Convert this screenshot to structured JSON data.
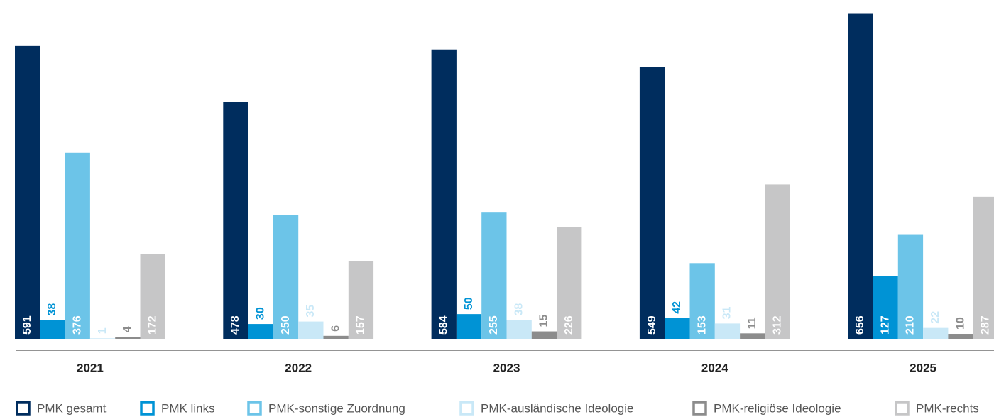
{
  "chart_data": {
    "type": "bar",
    "categories": [
      "2021",
      "2022",
      "2023",
      "2024",
      "2025"
    ],
    "series": [
      {
        "name": "PMK gesamt",
        "color": "#002d5e",
        "values": [
          591,
          478,
          584,
          549,
          656
        ]
      },
      {
        "name": "PMK links",
        "color": "#0093d5",
        "values": [
          38,
          30,
          50,
          42,
          127
        ]
      },
      {
        "name": "PMK-sonstige Zuordnung",
        "color": "#6cc4e8",
        "values": [
          376,
          250,
          255,
          153,
          210
        ]
      },
      {
        "name": "PMK-ausländische Ideologie",
        "color": "#c9e8f7",
        "values": [
          1,
          35,
          38,
          31,
          22
        ]
      },
      {
        "name": "PMK-religiöse Ideologie",
        "color": "#8c8c8c",
        "values": [
          4,
          6,
          15,
          11,
          10
        ]
      },
      {
        "name": "PMK-rechts",
        "color": "#c6c6c7",
        "values": [
          172,
          157,
          226,
          312,
          287
        ]
      }
    ],
    "ylim": [
      0,
      684
    ]
  }
}
